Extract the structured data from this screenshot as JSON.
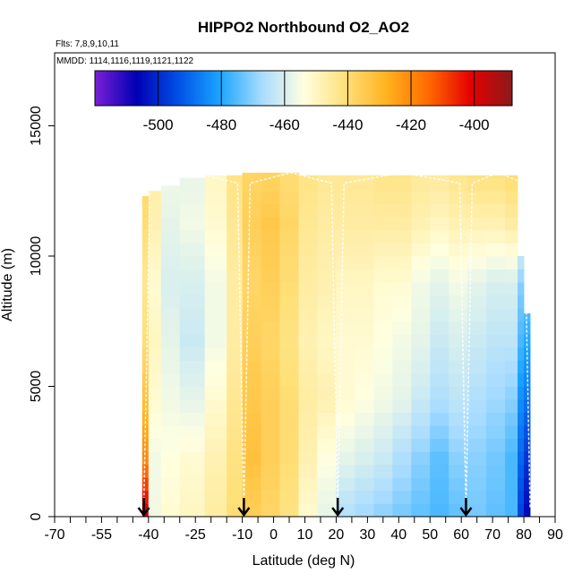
{
  "chart_data": {
    "type": "heatmap",
    "title": "HIPPO2 Northbound O2_AO2",
    "flights_label": "Flts: 7,8,9,10,11",
    "dates_label": "MMDD: 1114,1116,1119,1121,1122",
    "xlabel": "Latitude (deg N)",
    "ylabel": "Altitude (m)",
    "xlim": [
      -70,
      90
    ],
    "ylim": [
      0,
      17800
    ],
    "x_tick_labels": [
      {
        "value": -70,
        "label": "-70"
      },
      {
        "value": -55,
        "label": "-55"
      },
      {
        "value": -40,
        "label": "-40"
      },
      {
        "value": -25,
        "label": "-25"
      },
      {
        "value": -10,
        "label": "-10"
      },
      {
        "value": 0,
        "label": "0"
      },
      {
        "value": 10,
        "label": "10"
      },
      {
        "value": 20,
        "label": "20"
      },
      {
        "value": 30,
        "label": "30"
      },
      {
        "value": 40,
        "label": "40"
      },
      {
        "value": 50,
        "label": "50"
      },
      {
        "value": 60,
        "label": "60"
      },
      {
        "value": 70,
        "label": "70"
      },
      {
        "value": 80,
        "label": "80"
      },
      {
        "value": 90,
        "label": "90"
      }
    ],
    "x_minor_ticks": [
      -65,
      -60,
      -50,
      -45,
      -35,
      -30,
      -20,
      -15,
      -5,
      5,
      15,
      25,
      35,
      45,
      55,
      65,
      75,
      85
    ],
    "y_tick_labels": [
      {
        "value": 0,
        "label": "0"
      },
      {
        "value": 5000,
        "label": "5000"
      },
      {
        "value": 10000,
        "label": "10000"
      },
      {
        "value": 15000,
        "label": "15000"
      }
    ],
    "colorbar": {
      "range": [
        -520,
        -388
      ],
      "ticks": [
        {
          "value": -500,
          "label": "-500"
        },
        {
          "value": -480,
          "label": "-480"
        },
        {
          "value": -460,
          "label": "-460"
        },
        {
          "value": -440,
          "label": "-440"
        },
        {
          "value": -420,
          "label": "-420"
        },
        {
          "value": -400,
          "label": "-400"
        }
      ],
      "colors": [
        "#7a1fd6",
        "#0000b4",
        "#0050e6",
        "#1aa6ff",
        "#a8dcff",
        "#ffffe0",
        "#ffe07a",
        "#ffb21e",
        "#ff6a00",
        "#e60000",
        "#8b1a1a"
      ]
    },
    "flight_arrows": [
      -41.5,
      -9.5,
      20.5,
      61.5
    ],
    "columns": [
      {
        "x0": -42.0,
        "x1": -40.0,
        "top": 12300,
        "profile": [
          -396,
          -420,
          -432,
          -440,
          -444,
          -440,
          -438
        ]
      },
      {
        "x0": -40.0,
        "x1": -36.0,
        "top": 12500,
        "profile": [
          -456,
          -456,
          -452,
          -450,
          -452,
          -448,
          -446
        ]
      },
      {
        "x0": -36.0,
        "x1": -30.0,
        "top": 12700,
        "profile": [
          -452,
          -454,
          -456,
          -458,
          -460,
          -458,
          -456
        ]
      },
      {
        "x0": -30.0,
        "x1": -22.0,
        "top": 13000,
        "profile": [
          -450,
          -452,
          -458,
          -462,
          -460,
          -456,
          -458
        ]
      },
      {
        "x0": -22.0,
        "x1": -15.0,
        "top": 13100,
        "profile": [
          -446,
          -448,
          -452,
          -456,
          -456,
          -452,
          -450
        ]
      },
      {
        "x0": -15.0,
        "x1": -10.0,
        "top": 13100,
        "profile": [
          -440,
          -442,
          -444,
          -446,
          -446,
          -444,
          -442
        ]
      },
      {
        "x0": -10.0,
        "x1": -4.0,
        "top": 13200,
        "profile": [
          -436,
          -432,
          -434,
          -436,
          -438,
          -436,
          -438
        ]
      },
      {
        "x0": -4.0,
        "x1": 2.0,
        "top": 13200,
        "profile": [
          -438,
          -436,
          -436,
          -438,
          -436,
          -434,
          -438
        ]
      },
      {
        "x0": 2.0,
        "x1": 8.0,
        "top": 13200,
        "profile": [
          -442,
          -440,
          -440,
          -442,
          -440,
          -438,
          -440
        ]
      },
      {
        "x0": 8.0,
        "x1": 14.0,
        "top": 13100,
        "profile": [
          -452,
          -448,
          -446,
          -448,
          -446,
          -444,
          -442
        ]
      },
      {
        "x0": 14.0,
        "x1": 20.0,
        "top": 13100,
        "profile": [
          -458,
          -454,
          -448,
          -450,
          -448,
          -446,
          -444
        ]
      },
      {
        "x0": 20.0,
        "x1": 26.0,
        "top": 13100,
        "profile": [
          -466,
          -458,
          -452,
          -452,
          -450,
          -446,
          -444
        ]
      },
      {
        "x0": 26.0,
        "x1": 32.0,
        "top": 13100,
        "profile": [
          -468,
          -460,
          -454,
          -452,
          -450,
          -446,
          -444
        ]
      },
      {
        "x0": 32.0,
        "x1": 38.0,
        "top": 13100,
        "profile": [
          -470,
          -462,
          -456,
          -454,
          -452,
          -446,
          -442
        ]
      },
      {
        "x0": 38.0,
        "x1": 44.0,
        "top": 13100,
        "profile": [
          -472,
          -466,
          -458,
          -456,
          -452,
          -446,
          -442
        ]
      },
      {
        "x0": 44.0,
        "x1": 50.0,
        "top": 13100,
        "profile": [
          -474,
          -470,
          -462,
          -458,
          -456,
          -448,
          -444
        ]
      },
      {
        "x0": 50.0,
        "x1": 56.0,
        "top": 13100,
        "profile": [
          -476,
          -474,
          -466,
          -462,
          -458,
          -450,
          -444
        ]
      },
      {
        "x0": 56.0,
        "x1": 62.0,
        "top": 13100,
        "profile": [
          -474,
          -470,
          -464,
          -460,
          -456,
          -448,
          -442
        ]
      },
      {
        "x0": 62.0,
        "x1": 68.0,
        "top": 13100,
        "profile": [
          -472,
          -470,
          -466,
          -462,
          -458,
          -448,
          -440
        ]
      },
      {
        "x0": 68.0,
        "x1": 74.0,
        "top": 13100,
        "profile": [
          -474,
          -472,
          -468,
          -464,
          -460,
          -448,
          -440
        ]
      },
      {
        "x0": 74.0,
        "x1": 78.0,
        "top": 13100,
        "profile": [
          -476,
          -476,
          -470,
          -464,
          -460,
          -446,
          -438
        ]
      },
      {
        "x0": 78.0,
        "x1": 80.0,
        "top": 10000,
        "profile": [
          -496,
          -490,
          -484,
          -476,
          -470,
          -452,
          -440
        ]
      },
      {
        "x0": 80.0,
        "x1": 82.0,
        "top": 7800,
        "profile": [
          -506,
          -498,
          -488,
          -480,
          -470,
          -460,
          -450
        ]
      }
    ]
  }
}
